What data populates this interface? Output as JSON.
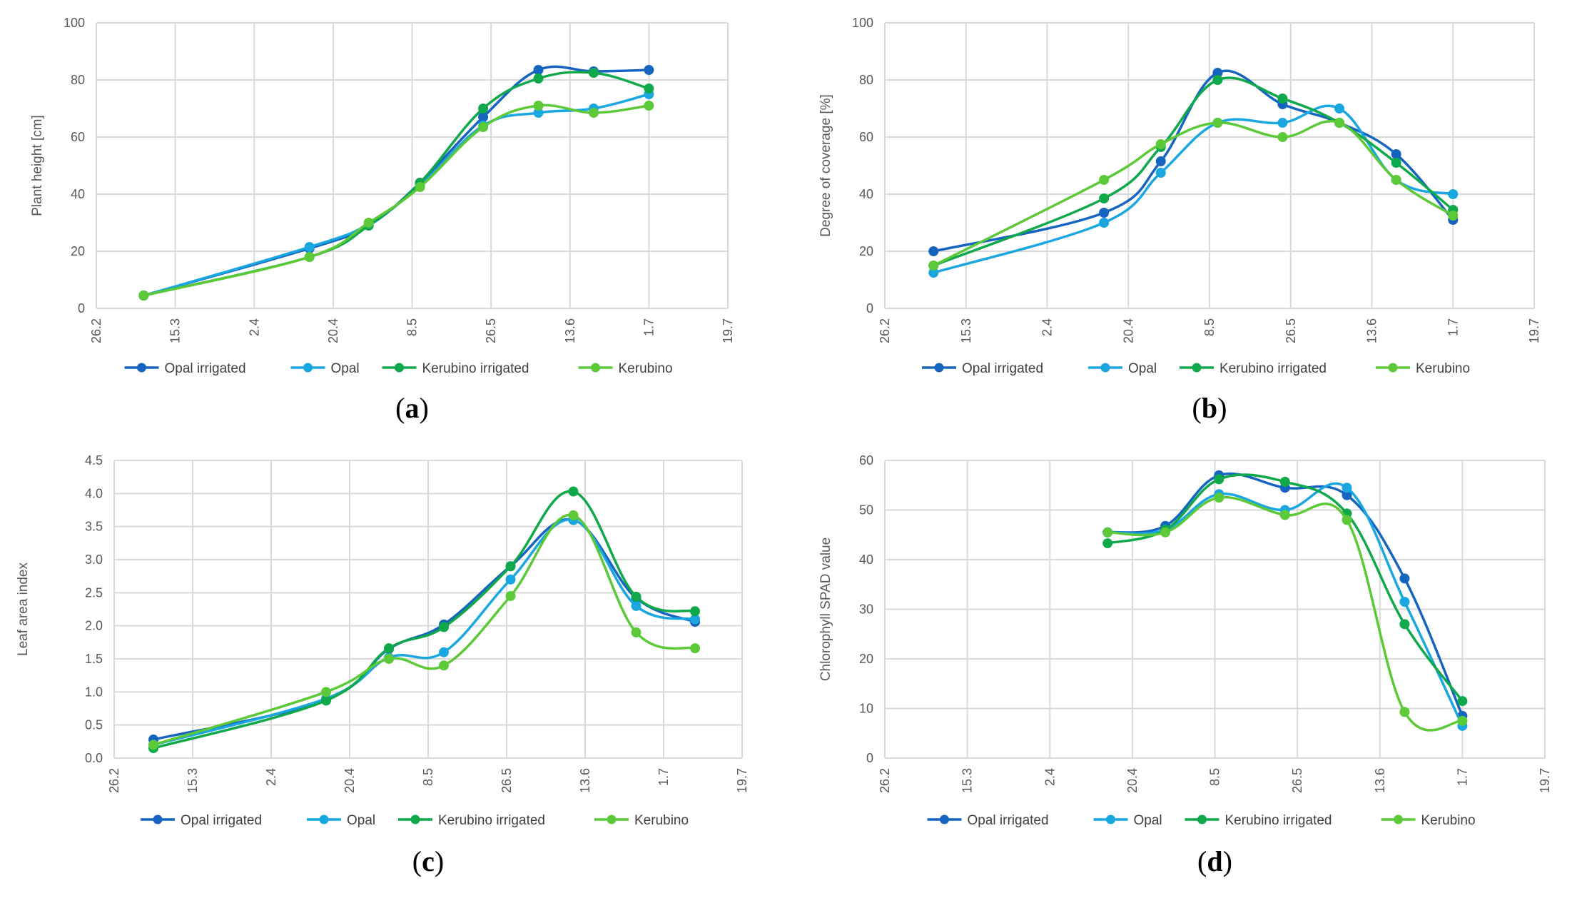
{
  "series_names": [
    "Opal irrigated",
    "Opal",
    "Kerubino irrigated",
    "Kerubino"
  ],
  "series_colors": [
    "#1565c0",
    "#1aa7e0",
    "#0fa84a",
    "#5cc938"
  ],
  "x_tick_labels": [
    "26.2",
    "15.3",
    "2.4",
    "20.4",
    "8.5",
    "26.5",
    "13.6",
    "1.7",
    "19.7"
  ],
  "chart_data": [
    {
      "type": "line",
      "caption_letter": "a",
      "title": "",
      "xlabel": "",
      "ylabel": "Plant height [cm]",
      "ylim": [
        0,
        100
      ],
      "yticks": [
        "0",
        "20",
        "40",
        "60",
        "80",
        "100"
      ],
      "xlim": [
        0,
        8
      ],
      "series": [
        {
          "name": "Opal irrigated",
          "x": [
            0.6,
            2.7,
            3.45,
            4.1,
            4.9,
            5.6,
            6.3,
            7.0
          ],
          "values": [
            4.5,
            21,
            29,
            44,
            67,
            83.5,
            83,
            83.5
          ]
        },
        {
          "name": "Opal",
          "x": [
            0.6,
            2.7,
            3.45,
            4.1,
            4.9,
            5.6,
            6.3,
            7.0
          ],
          "values": [
            4.5,
            21.5,
            29.5,
            43,
            64,
            68.5,
            70,
            75
          ]
        },
        {
          "name": "Kerubino irrigated",
          "x": [
            0.6,
            2.7,
            3.45,
            4.1,
            4.9,
            5.6,
            6.3,
            7.0
          ],
          "values": [
            4.5,
            18,
            29,
            44,
            70,
            80.5,
            82.5,
            77
          ]
        },
        {
          "name": "Kerubino",
          "x": [
            0.6,
            2.7,
            3.45,
            4.1,
            4.9,
            5.6,
            6.3,
            7.0
          ],
          "values": [
            4.5,
            18,
            30,
            42.5,
            63.5,
            71,
            68.5,
            71
          ]
        }
      ]
    },
    {
      "type": "line",
      "caption_letter": "b",
      "title": "",
      "xlabel": "",
      "ylabel": "Degree of coverage [%]",
      "ylim": [
        0,
        100
      ],
      "yticks": [
        "0",
        "20",
        "40",
        "60",
        "80",
        "100"
      ],
      "xlim": [
        0,
        8
      ],
      "series": [
        {
          "name": "Opal irrigated",
          "x": [
            0.6,
            2.7,
            3.4,
            4.1,
            4.9,
            5.6,
            6.3,
            7.0
          ],
          "values": [
            20,
            33.5,
            51.5,
            82.5,
            71.5,
            65,
            54,
            31
          ]
        },
        {
          "name": "Opal",
          "x": [
            0.6,
            2.7,
            3.4,
            4.1,
            4.9,
            5.6,
            6.3,
            7.0
          ],
          "values": [
            12.5,
            30,
            47.5,
            65,
            65,
            70,
            45,
            40
          ]
        },
        {
          "name": "Kerubino irrigated",
          "x": [
            0.6,
            2.7,
            3.4,
            4.1,
            4.9,
            5.6,
            6.3,
            7.0
          ],
          "values": [
            15,
            38.5,
            56.5,
            80,
            73.5,
            65,
            51,
            34.5
          ]
        },
        {
          "name": "Kerubino",
          "x": [
            0.6,
            2.7,
            3.4,
            4.1,
            4.9,
            5.6,
            6.3,
            7.0
          ],
          "values": [
            15,
            45,
            57.5,
            65,
            60,
            65,
            45,
            32.5
          ]
        }
      ]
    },
    {
      "type": "line",
      "caption_letter": "c",
      "title": "",
      "xlabel": "",
      "ylabel": "Leaf area index",
      "ylim": [
        0,
        4.5
      ],
      "yticks": [
        "0.0",
        "0.5",
        "1.0",
        "1.5",
        "2.0",
        "2.5",
        "3.0",
        "3.5",
        "4.0",
        "4.5"
      ],
      "xlim": [
        0,
        8
      ],
      "series": [
        {
          "name": "Opal irrigated",
          "x": [
            0.5,
            2.7,
            3.5,
            4.2,
            5.05,
            5.85,
            6.65,
            7.4
          ],
          "values": [
            0.28,
            0.88,
            1.65,
            2.02,
            2.9,
            3.6,
            2.42,
            2.06
          ]
        },
        {
          "name": "Opal",
          "x": [
            0.5,
            2.7,
            3.5,
            4.2,
            5.05,
            5.85,
            6.65,
            7.4
          ],
          "values": [
            0.2,
            0.9,
            1.52,
            1.6,
            2.7,
            3.6,
            2.3,
            2.1
          ]
        },
        {
          "name": "Kerubino irrigated",
          "x": [
            0.5,
            2.7,
            3.5,
            4.2,
            5.05,
            5.85,
            6.65,
            7.4
          ],
          "values": [
            0.15,
            0.87,
            1.66,
            1.98,
            2.9,
            4.03,
            2.44,
            2.22
          ]
        },
        {
          "name": "Kerubino",
          "x": [
            0.5,
            2.7,
            3.5,
            4.2,
            5.05,
            5.85,
            6.65,
            7.4
          ],
          "values": [
            0.2,
            1.0,
            1.5,
            1.4,
            2.45,
            3.67,
            1.9,
            1.66
          ]
        }
      ]
    },
    {
      "type": "line",
      "caption_letter": "d",
      "title": "",
      "xlabel": "",
      "ylabel": "Chlorophyll SPAD value",
      "ylim": [
        0,
        60
      ],
      "yticks": [
        "0",
        "10",
        "20",
        "30",
        "40",
        "50",
        "60"
      ],
      "xlim": [
        0,
        8
      ],
      "series": [
        {
          "name": "Opal irrigated",
          "x": [
            2.7,
            3.4,
            4.05,
            4.85,
            5.6,
            6.3,
            7.0
          ],
          "values": [
            45.5,
            46.8,
            57,
            54.5,
            53,
            36.2,
            8.5
          ]
        },
        {
          "name": "Opal",
          "x": [
            2.7,
            3.4,
            4.05,
            4.85,
            5.6,
            6.3,
            7.0
          ],
          "values": [
            45.5,
            46,
            53.2,
            50,
            54.5,
            31.5,
            6.5
          ]
        },
        {
          "name": "Kerubino irrigated",
          "x": [
            2.7,
            3.4,
            4.05,
            4.85,
            5.6,
            6.3,
            7.0
          ],
          "values": [
            43.3,
            46,
            56.2,
            55.7,
            49.3,
            27,
            11.5
          ]
        },
        {
          "name": "Kerubino",
          "x": [
            2.7,
            3.4,
            4.05,
            4.85,
            5.6,
            6.3,
            7.0
          ],
          "values": [
            45.5,
            45.5,
            52.5,
            49,
            48,
            9.3,
            7.5
          ]
        }
      ]
    }
  ]
}
